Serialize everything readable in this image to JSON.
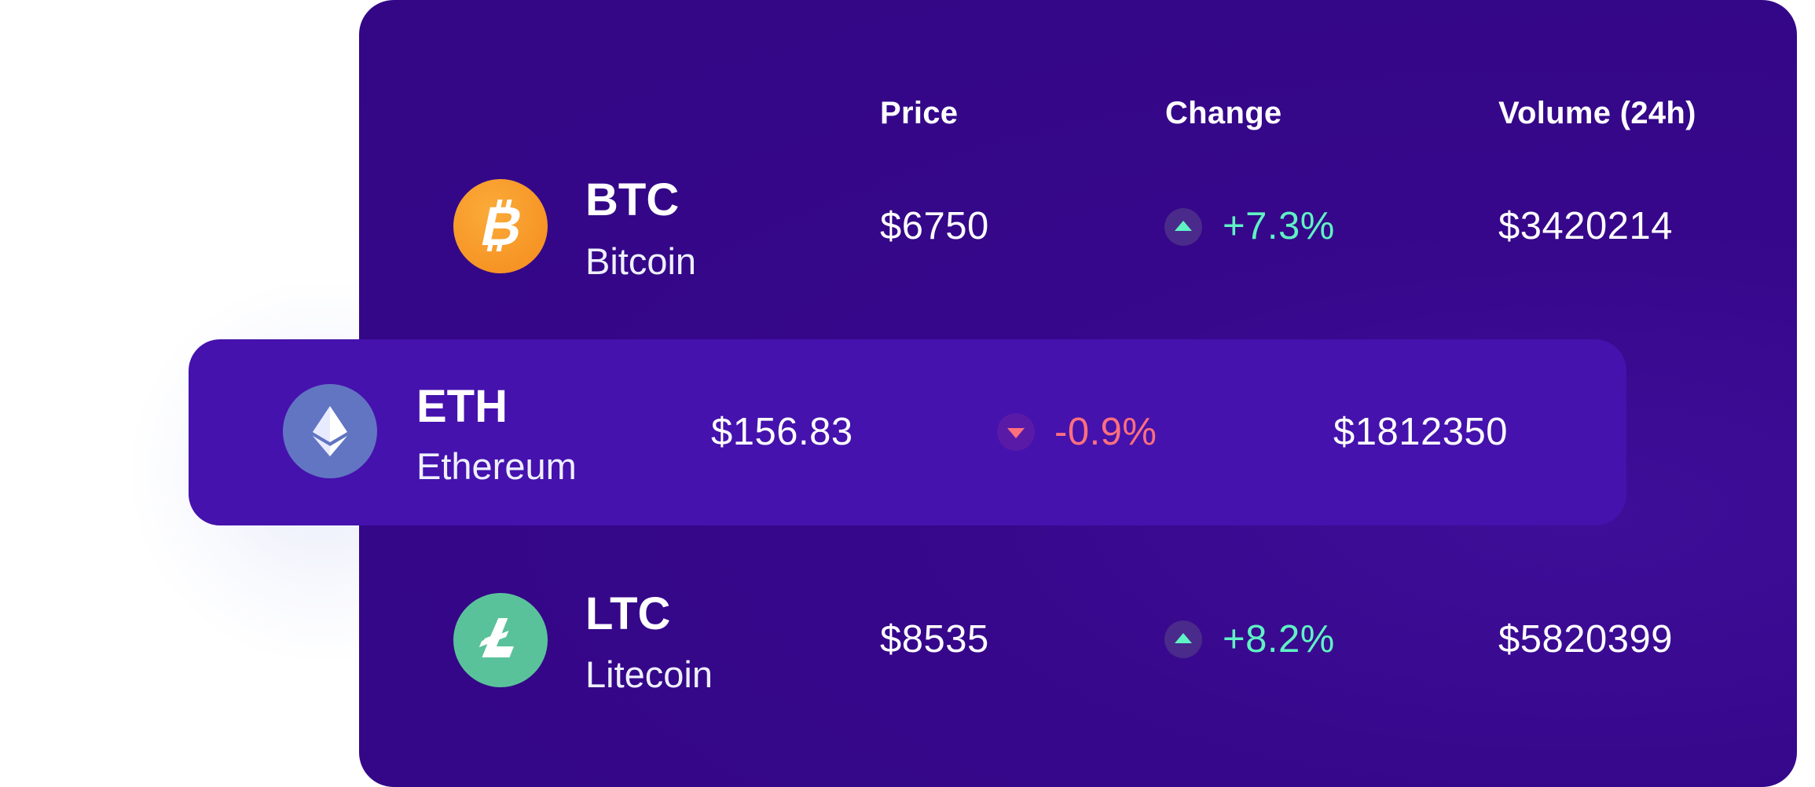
{
  "headers": {
    "price": "Price",
    "change": "Change",
    "volume": "Volume (24h)"
  },
  "coins": [
    {
      "symbol": "BTC",
      "name": "Bitcoin",
      "price": "$6750",
      "change": "+7.3%",
      "direction": "up",
      "volume": "$3420214",
      "icon": "bitcoin-icon",
      "icon_color": "#f7931a"
    },
    {
      "symbol": "ETH",
      "name": "Ethereum",
      "price": "$156.83",
      "change": "-0.9%",
      "direction": "down",
      "volume": "$1812350",
      "icon": "ethereum-icon",
      "icon_color": "#6275c2"
    },
    {
      "symbol": "LTC",
      "name": "Litecoin",
      "price": "$8535",
      "change": "+8.2%",
      "direction": "up",
      "volume": "$5820399",
      "icon": "litecoin-icon",
      "icon_color": "#5ac29a"
    }
  ],
  "colors": {
    "card_bg": "#35078a",
    "highlight_bg": "#4512ad",
    "positive": "#5ff2c4",
    "negative": "#ff6f7d"
  }
}
